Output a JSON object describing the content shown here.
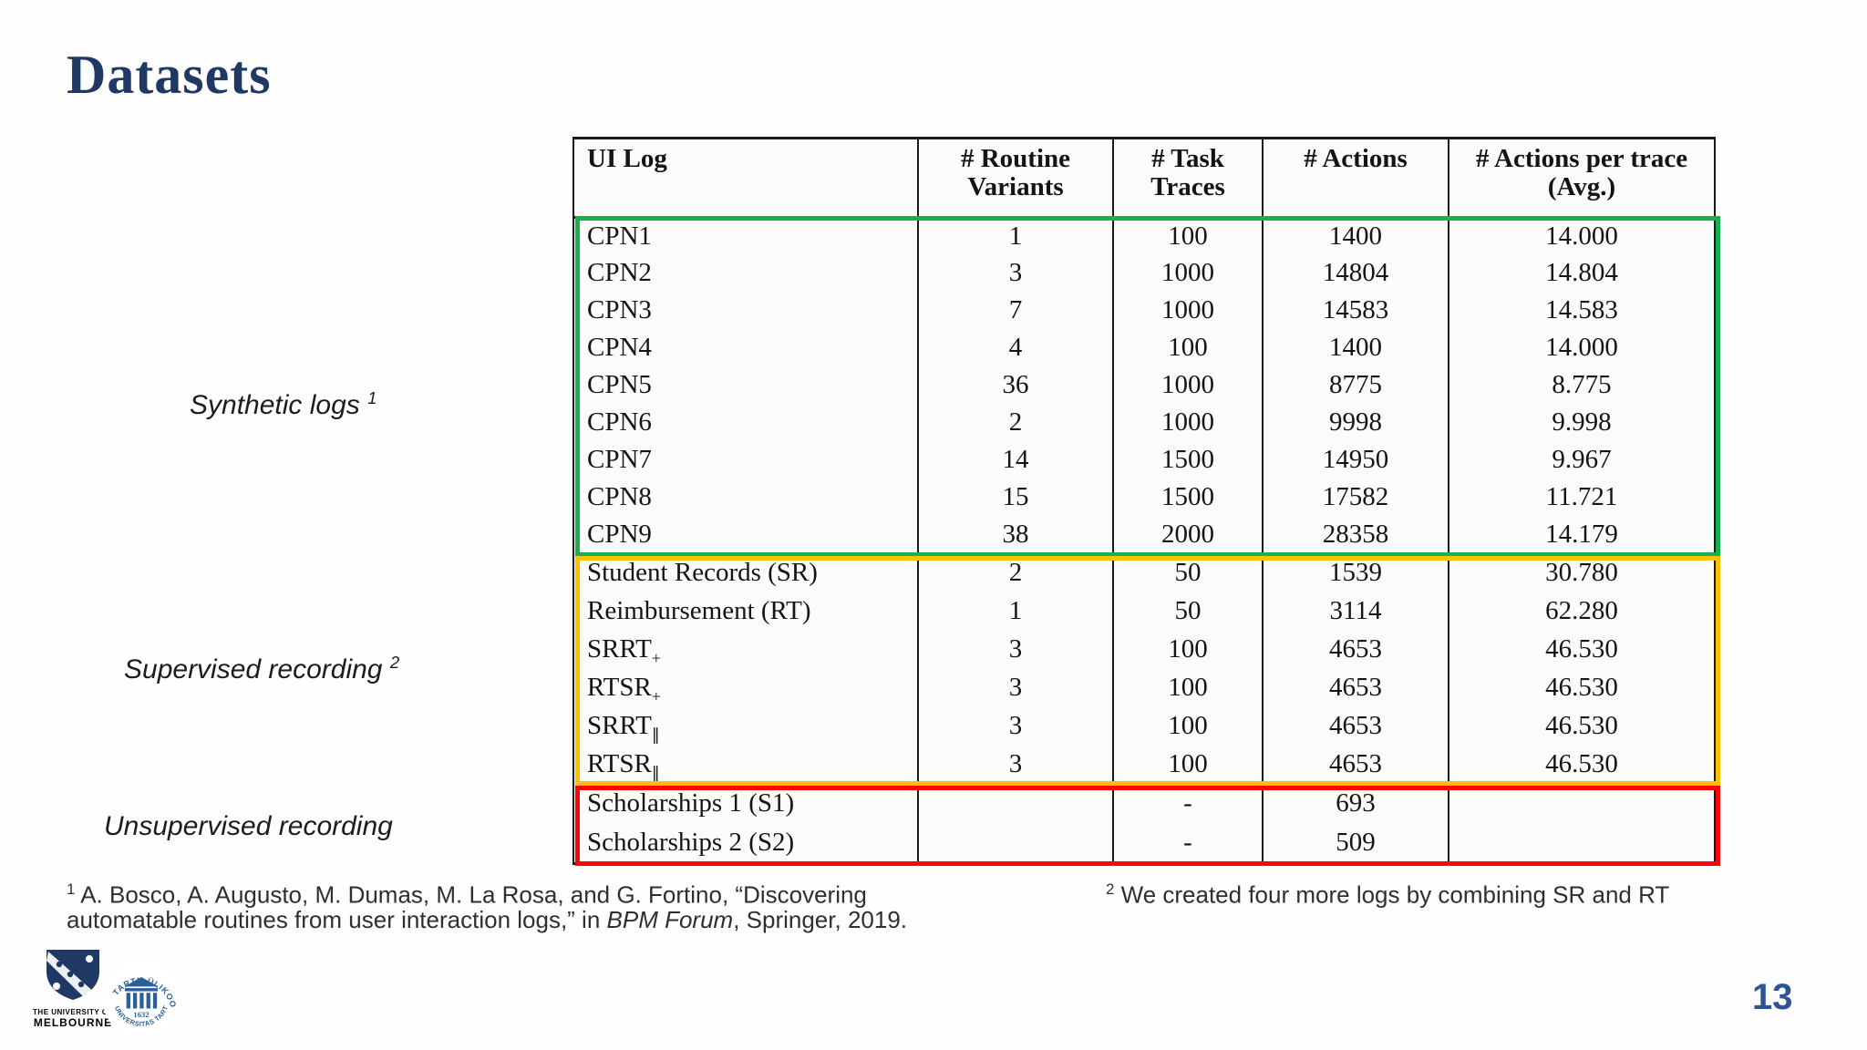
{
  "slide": {
    "title": "Datasets",
    "page_number": "13"
  },
  "colors": {
    "title_navy": "#1f3864",
    "page_blue": "#2e5496",
    "synthetic_green": "#14b14e",
    "supervised_gold": "#ffc000",
    "unsupervised_red": "#fe0505",
    "logo_blue": "#2a6099",
    "melbourne_navy": "#1f3864"
  },
  "table": {
    "headers": [
      "UI Log",
      "# Routine Variants",
      "# Task Traces",
      "# Actions",
      "# Actions per trace (Avg.)"
    ],
    "groups": [
      {
        "label": "Synthetic logs",
        "label_sup": "1",
        "border_color": "#14b14e",
        "rows": [
          {
            "name": "CPN1",
            "name_sub": "",
            "routine_variants": "1",
            "task_traces": "100",
            "actions": "1400",
            "actions_per_trace": "14.000"
          },
          {
            "name": "CPN2",
            "name_sub": "",
            "routine_variants": "3",
            "task_traces": "1000",
            "actions": "14804",
            "actions_per_trace": "14.804"
          },
          {
            "name": "CPN3",
            "name_sub": "",
            "routine_variants": "7",
            "task_traces": "1000",
            "actions": "14583",
            "actions_per_trace": "14.583"
          },
          {
            "name": "CPN4",
            "name_sub": "",
            "routine_variants": "4",
            "task_traces": "100",
            "actions": "1400",
            "actions_per_trace": "14.000"
          },
          {
            "name": "CPN5",
            "name_sub": "",
            "routine_variants": "36",
            "task_traces": "1000",
            "actions": "8775",
            "actions_per_trace": "8.775"
          },
          {
            "name": "CPN6",
            "name_sub": "",
            "routine_variants": "2",
            "task_traces": "1000",
            "actions": "9998",
            "actions_per_trace": "9.998"
          },
          {
            "name": "CPN7",
            "name_sub": "",
            "routine_variants": "14",
            "task_traces": "1500",
            "actions": "14950",
            "actions_per_trace": "9.967"
          },
          {
            "name": "CPN8",
            "name_sub": "",
            "routine_variants": "15",
            "task_traces": "1500",
            "actions": "17582",
            "actions_per_trace": "11.721"
          },
          {
            "name": "CPN9",
            "name_sub": "",
            "routine_variants": "38",
            "task_traces": "2000",
            "actions": "28358",
            "actions_per_trace": "14.179"
          }
        ]
      },
      {
        "label": "Supervised recording",
        "label_sup": "2",
        "border_color": "#ffc000",
        "rows": [
          {
            "name": "Student Records (SR)",
            "name_sub": "",
            "routine_variants": "2",
            "task_traces": "50",
            "actions": "1539",
            "actions_per_trace": "30.780"
          },
          {
            "name": "Reimbursement (RT)",
            "name_sub": "",
            "routine_variants": "1",
            "task_traces": "50",
            "actions": "3114",
            "actions_per_trace": "62.280"
          },
          {
            "name": "SRRT",
            "name_sub": "+",
            "routine_variants": "3",
            "task_traces": "100",
            "actions": "4653",
            "actions_per_trace": "46.530"
          },
          {
            "name": "RTSR",
            "name_sub": "+",
            "routine_variants": "3",
            "task_traces": "100",
            "actions": "4653",
            "actions_per_trace": "46.530"
          },
          {
            "name": "SRRT",
            "name_sub": "∥",
            "routine_variants": "3",
            "task_traces": "100",
            "actions": "4653",
            "actions_per_trace": "46.530"
          },
          {
            "name": "RTSR",
            "name_sub": "∥",
            "routine_variants": "3",
            "task_traces": "100",
            "actions": "4653",
            "actions_per_trace": "46.530"
          }
        ]
      },
      {
        "label": "Unsupervised recording",
        "label_sup": "",
        "border_color": "#fe0505",
        "rows": [
          {
            "name": "Scholarships 1 (S1)",
            "name_sub": "",
            "routine_variants": "",
            "task_traces": "-",
            "actions": "693",
            "actions_per_trace": ""
          },
          {
            "name": "Scholarships 2 (S2)",
            "name_sub": "",
            "routine_variants": "",
            "task_traces": "-",
            "actions": "509",
            "actions_per_trace": ""
          }
        ]
      }
    ]
  },
  "footnotes": {
    "left": {
      "segments": [
        {
          "text": "1",
          "sup": true
        },
        {
          "text": " A. Bosco, A. Augusto, M. Dumas, M. La Rosa, and G. Fortino, “Discovering automatable routines from user interaction logs,” in "
        },
        {
          "text": "BPM Forum",
          "italic": true
        },
        {
          "text": ", Springer, 2019."
        }
      ]
    },
    "right": {
      "segments": [
        {
          "text": "2",
          "sup": true
        },
        {
          "text": " We created four more logs by combining SR and RT"
        }
      ]
    }
  },
  "logos": {
    "melbourne": {
      "line1": "THE UNIVERSITY OF",
      "line2": "MELBOURNE"
    },
    "tartu": {
      "ring_top": "TARTU ÜLIKOOL",
      "ring_bottom": "UNIVERSITAS TARTUENSIS",
      "year": "1632"
    }
  }
}
